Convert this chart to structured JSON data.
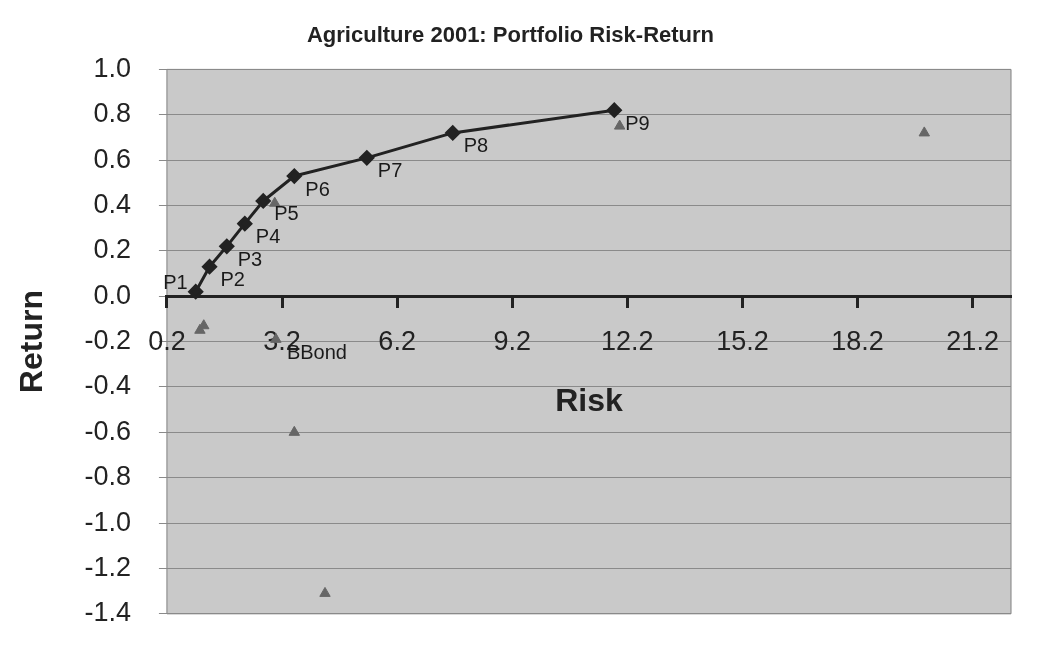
{
  "chart_data": {
    "type": "scatter",
    "title": "Agriculture 2001: Portfolio Risk-Return",
    "xlabel": "Risk",
    "ylabel": "Return",
    "xlim": [
      0.2,
      22.2
    ],
    "xticks": [
      0.2,
      3.2,
      6.2,
      9.2,
      12.2,
      15.2,
      18.2,
      21.2
    ],
    "ylim": [
      -1.4,
      1.0
    ],
    "yticks": [
      {
        "value": 1.0,
        "label": "1.0"
      },
      {
        "value": 0.8,
        "label": "0.8"
      },
      {
        "value": 0.6,
        "label": "0.6"
      },
      {
        "value": 0.4,
        "label": "0.4"
      },
      {
        "value": 0.2,
        "label": "0.2"
      },
      {
        "value": 0,
        "label": "0.0"
      },
      {
        "value": -0.2,
        "label": "-0.2"
      },
      {
        "value": -0.4,
        "label": "-0.4"
      },
      {
        "value": -0.6,
        "label": "-0.6"
      },
      {
        "value": -0.8,
        "label": "-0.8"
      },
      {
        "value": -1.0,
        "label": "-1.0"
      },
      {
        "value": -1.2,
        "label": "-1.2"
      },
      {
        "value": -1.4,
        "label": "-1.4"
      }
    ],
    "grid": "y",
    "legend": false,
    "series": [
      {
        "type": "line",
        "color": "#222222",
        "marker": "diamond",
        "line_style": "solid",
        "x": [
          0.95,
          1.31,
          1.76,
          2.23,
          2.71,
          3.52,
          5.41,
          7.65,
          11.86
        ],
        "values": [
          0.02,
          0.13,
          0.22,
          0.32,
          0.42,
          0.53,
          0.61,
          0.72,
          0.82
        ]
      },
      {
        "type": "scatter",
        "color": "#666666",
        "marker": "triangle",
        "x": [
          19.94,
          12.0,
          3.01,
          1.16,
          1.06,
          3.04,
          3.52,
          4.32
        ],
        "values": [
          0.72,
          0.75,
          0.41,
          -0.13,
          -0.15,
          -0.19,
          -0.6,
          -1.31
        ]
      }
    ],
    "annotations": [
      {
        "text": "P1",
        "x": 0.95,
        "y": 0.02
      },
      {
        "text": "P2",
        "x": 1.31,
        "y": 0.13
      },
      {
        "text": "P3",
        "x": 1.76,
        "y": 0.22
      },
      {
        "text": "P4",
        "x": 2.23,
        "y": 0.32
      },
      {
        "text": "P5",
        "x": 2.71,
        "y": 0.42
      },
      {
        "text": "P6",
        "x": 3.52,
        "y": 0.53
      },
      {
        "text": "P7",
        "x": 5.41,
        "y": 0.61
      },
      {
        "text": "P8",
        "x": 7.65,
        "y": 0.72
      },
      {
        "text": "P9",
        "x": 11.86,
        "y": 0.82
      },
      {
        "text": "BBond",
        "x": 3.04,
        "y": -0.19
      }
    ]
  }
}
